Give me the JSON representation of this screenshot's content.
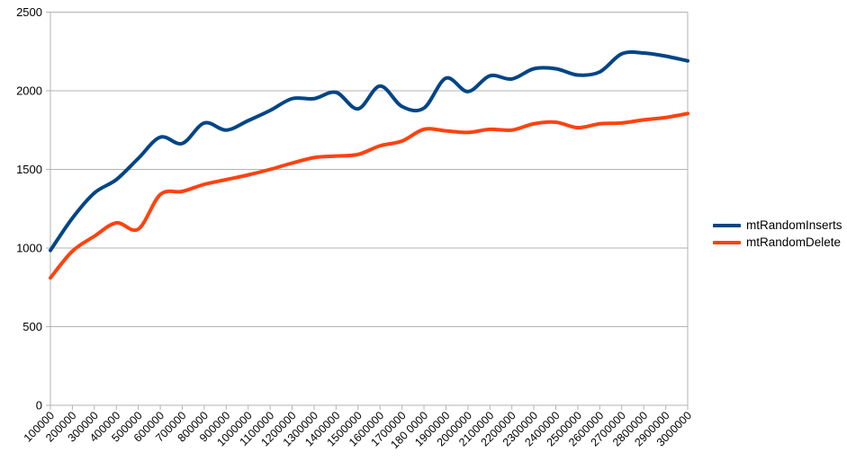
{
  "chart_data": {
    "type": "line",
    "title": "",
    "xlabel": "",
    "ylabel": "",
    "smooth": true,
    "grid": "horizontal",
    "legend_position": "right",
    "ylim": [
      0,
      2500
    ],
    "y_ticks": [
      0,
      500,
      1000,
      1500,
      2000,
      2500
    ],
    "y_tick_labels": [
      "0",
      "500",
      "1000",
      "1500",
      "2000",
      "2500"
    ],
    "x": [
      100000,
      200000,
      300000,
      400000,
      500000,
      600000,
      700000,
      800000,
      900000,
      1000000,
      1100000,
      1200000,
      1300000,
      1400000,
      1500000,
      1600000,
      1700000,
      1800000,
      1900000,
      2000000,
      2100000,
      2200000,
      2300000,
      2400000,
      2500000,
      2600000,
      2700000,
      2800000,
      2900000,
      3000000
    ],
    "x_tick_labels": [
      "100000",
      "200000",
      "300000",
      "400000",
      "500000",
      "600000",
      "700000",
      "800000",
      "900000",
      "1000000",
      "1100000",
      "1200000",
      "1300000",
      "1400000",
      "1500000",
      "1600000",
      "1700000",
      "180 0000",
      "1900000",
      "2000000",
      "2100000",
      "2200000",
      "2300000",
      "2400000",
      "2500000",
      "2600000",
      "2700000",
      "2800000",
      "2900000",
      "3000000"
    ],
    "series": [
      {
        "name": "mtRandomInserts",
        "color": "#004586",
        "values": [
          985,
          1190,
          1350,
          1435,
          1570,
          1705,
          1665,
          1795,
          1750,
          1810,
          1875,
          1950,
          1950,
          1990,
          1885,
          2030,
          1900,
          1890,
          2080,
          1995,
          2095,
          2075,
          2140,
          2140,
          2100,
          2120,
          2235,
          2240,
          2220,
          2190
        ]
      },
      {
        "name": "mtRandomDelete",
        "color": "#FF420E",
        "values": [
          810,
          980,
          1075,
          1160,
          1120,
          1340,
          1360,
          1405,
          1435,
          1465,
          1500,
          1540,
          1575,
          1585,
          1595,
          1650,
          1680,
          1755,
          1745,
          1735,
          1755,
          1750,
          1790,
          1800,
          1765,
          1790,
          1795,
          1815,
          1830,
          1855
        ]
      }
    ]
  },
  "legend": {
    "items": [
      {
        "label": "mtRandomInserts"
      },
      {
        "label": "mtRandomDelete"
      }
    ]
  },
  "colors": {
    "grid": "#B3B3B3",
    "axis": "#B3B3B3",
    "text": "#000000",
    "background": "#FFFFFF"
  }
}
